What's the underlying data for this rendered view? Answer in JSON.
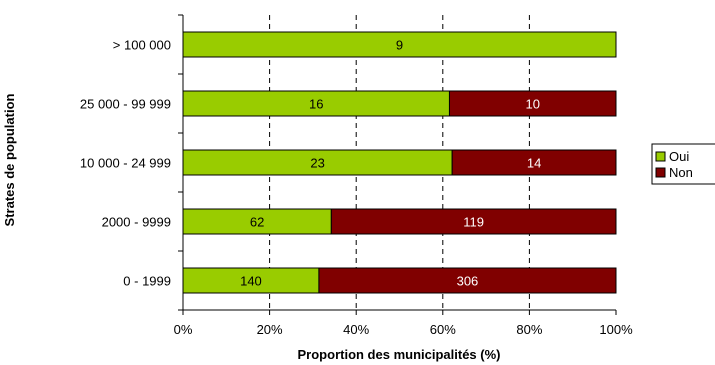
{
  "chart_data": {
    "type": "bar",
    "orientation": "horizontal",
    "stacked": "percent",
    "categories": [
      "> 100 000",
      "25 000 - 99 999",
      "10 000 - 24 999",
      "2000 - 9999",
      "0 - 1999"
    ],
    "series": [
      {
        "name": "Oui",
        "values": [
          9,
          16,
          23,
          62,
          140
        ],
        "color": "#99cc00"
      },
      {
        "name": "Non",
        "values": [
          0,
          10,
          14,
          119,
          306
        ],
        "color": "#800000"
      }
    ],
    "xlabel": "Proportion des municipalités (%)",
    "ylabel": "Strates de population",
    "xlim": [
      0,
      100
    ],
    "xticks": [
      "0%",
      "20%",
      "40%",
      "60%",
      "80%",
      "100%"
    ],
    "grid": "vertical dashed",
    "legend_position": "right"
  }
}
